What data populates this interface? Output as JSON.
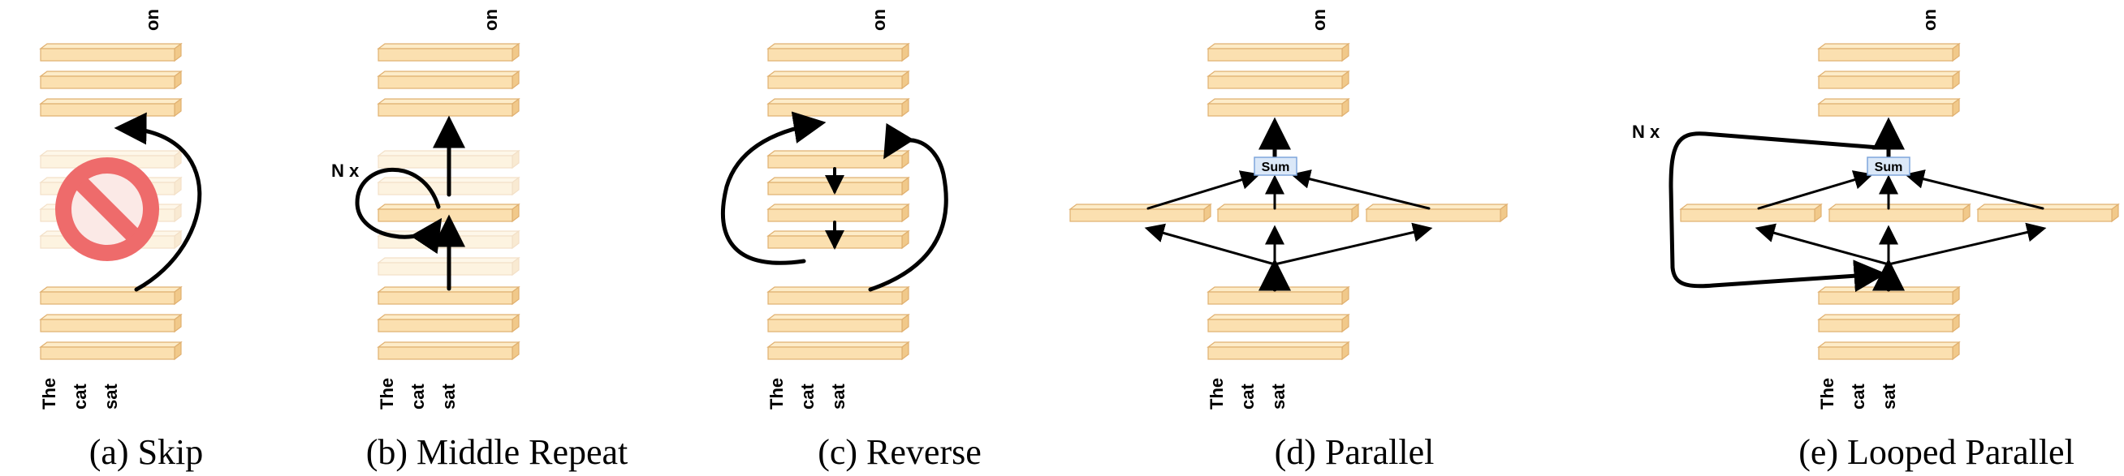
{
  "colors": {
    "layer_front": "#fbe0b0",
    "layer_top": "#fdecc8",
    "layer_side": "#f1c98a",
    "layer_stroke": "#e0b070",
    "sum_fill": "#dbe8f8",
    "sum_stroke": "#7ea6dc",
    "no_sign": "#ee6b6b",
    "arrow": "#000000"
  },
  "tokens": {
    "input": [
      "The",
      "cat",
      "sat"
    ],
    "output": "on"
  },
  "labels": {
    "n_times": "N x",
    "sum": "Sum"
  },
  "panels": [
    {
      "id": "a",
      "caption": "(a) Skip",
      "icons": [
        "no-entry-icon"
      ]
    },
    {
      "id": "b",
      "caption": "(b) Middle Repeat"
    },
    {
      "id": "c",
      "caption": "(c) Reverse"
    },
    {
      "id": "d",
      "caption": "(d) Parallel"
    },
    {
      "id": "e",
      "caption": "(e) Looped Parallel"
    }
  ]
}
